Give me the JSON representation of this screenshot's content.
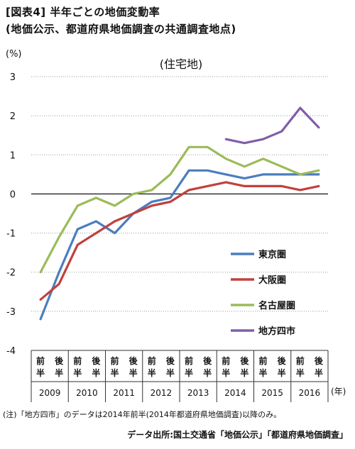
{
  "title_line1": "[図表4] 半年ごとの地価変動率",
  "title_line2": "(地価公示、都道府県地価調査の共通調査地点)",
  "note": "(注)「地方四市」のデータは2014年前半(2014年都道府県地価調査)以降のみ。",
  "source": "データ出所:国土交通省「地価公示」「都道府県地価調査」",
  "chart_data": {
    "type": "line",
    "title": "(住宅地)",
    "ylabel": "(%)",
    "xlabel": "(年)",
    "ylim": [
      -4,
      3
    ],
    "yticks": [
      3,
      2,
      1,
      0,
      -1,
      -2,
      -3,
      -4
    ],
    "grid": true,
    "legend_position": "right-lower",
    "half_labels": [
      [
        "前",
        "半"
      ],
      [
        "後",
        "半"
      ]
    ],
    "years": [
      "2009",
      "2010",
      "2011",
      "2012",
      "2013",
      "2014",
      "2015",
      "2016"
    ],
    "categories": [
      "2009前半",
      "2009後半",
      "2010前半",
      "2010後半",
      "2011前半",
      "2011後半",
      "2012前半",
      "2012後半",
      "2013前半",
      "2013後半",
      "2014前半",
      "2014後半",
      "2015前半",
      "2015後半",
      "2016前半",
      "2016後半"
    ],
    "series": [
      {
        "name": "東京圏",
        "color": "#4a7ebf",
        "values": [
          -3.2,
          -2.0,
          -0.9,
          -0.7,
          -1.0,
          -0.5,
          -0.2,
          -0.1,
          0.6,
          0.6,
          0.5,
          0.4,
          0.5,
          0.5,
          0.5,
          0.5
        ]
      },
      {
        "name": "大阪圏",
        "color": "#c0413d",
        "values": [
          -2.7,
          -2.3,
          -1.3,
          -1.0,
          -0.7,
          -0.5,
          -0.3,
          -0.2,
          0.1,
          0.2,
          0.3,
          0.2,
          0.2,
          0.2,
          0.1,
          0.2
        ]
      },
      {
        "name": "名古屋圏",
        "color": "#9bbb59",
        "values": [
          -2.0,
          -1.1,
          -0.3,
          -0.1,
          -0.3,
          0.0,
          0.1,
          0.5,
          1.2,
          1.2,
          0.9,
          0.7,
          0.9,
          0.7,
          0.5,
          0.6
        ]
      },
      {
        "name": "地方四市",
        "color": "#7f5ea8",
        "values": [
          null,
          null,
          null,
          null,
          null,
          null,
          null,
          null,
          null,
          null,
          1.4,
          1.3,
          1.4,
          1.6,
          2.2,
          1.7
        ]
      }
    ]
  }
}
